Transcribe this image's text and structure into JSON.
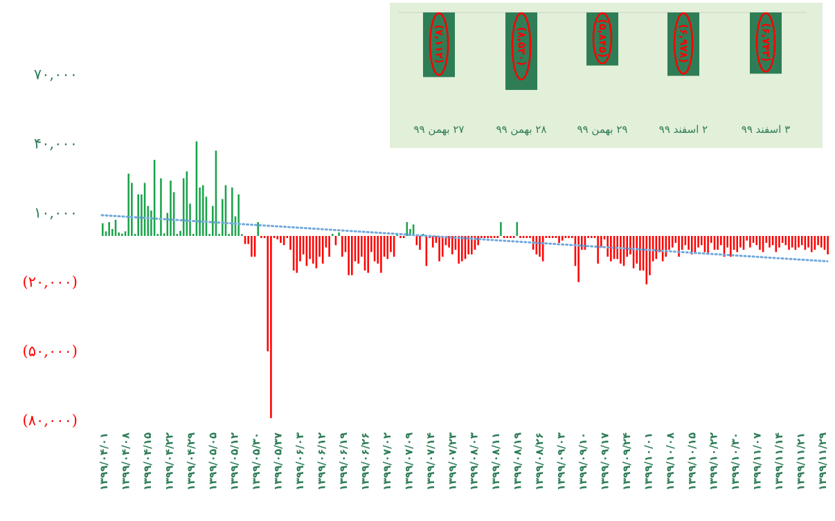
{
  "chart_data": [
    {
      "type": "bar",
      "title": "",
      "xlabel": "",
      "ylabel": "",
      "y_tick_labels": [
        "۷۰,۰۰۰",
        "۴۰,۰۰۰",
        "۱۰,۰۰۰",
        "(۲۰,۰۰۰)",
        "(۵۰,۰۰۰)",
        "(۸۰,۰۰۰)"
      ],
      "y_tick_values": [
        70000,
        40000,
        10000,
        -20000,
        -50000,
        -80000
      ],
      "ylim": [
        -80000,
        70000
      ],
      "x_tick_labels": [
        "۱۳۹۹/۰۴/۰۱",
        "۱۳۹۹/۰۴/۰۸",
        "۱۳۹۹/۰۴/۱۵",
        "۱۳۹۹/۰۴/۲۲",
        "۱۳۹۹/۰۴/۲۹",
        "۱۳۹۹/۰۵/۰۵",
        "۱۳۹۹/۰۵/۱۲",
        "۱۳۹۹/۰۵/۳۰",
        "۱۳۹۹/۰۵/۳۷",
        "۱۳۹۹/۰۶/۰۳",
        "۱۳۹۹/۰۶/۱۲",
        "۱۳۹۹/۰۶/۱۹",
        "۱۳۹۹/۰۶/۲۶",
        "۱۳۹۹/۰۷/۰۲",
        "۱۳۹۹/۰۷/۰۹",
        "۱۳۹۹/۰۷/۱۴",
        "۱۳۹۹/۰۷/۲۳",
        "۱۳۹۹/۰۸/۰۳",
        "۱۳۹۹/۰۸/۱۱",
        "۱۳۹۹/۰۸/۱۹",
        "۱۳۹۹/۰۸/۲۶",
        "۱۳۹۹/۰۹/۰۳",
        "۱۳۹۹/۰۹/۱۰",
        "۱۳۹۹/۰۹/۱۷",
        "۱۳۹۹/۰۹/۲۴",
        "۱۳۹۹/۱۰/۰۱",
        "۱۳۹۹/۱۰/۰۸",
        "۱۳۹۹/۱۰/۱۵",
        "۱۳۹۹/۱۰/۲۲",
        "۱۳۹۹/۱۰/۳۰",
        "۱۳۹۹/۱۱/۰۷",
        "۱۳۹۹/۱۱/۱۴",
        "۱۳۹۹/۱۱/۲۱",
        "۱۳۹۹/۱۱/۲۹"
      ],
      "trendline": {
        "style": "dotted",
        "color": "#6fa8dc",
        "start": 9000,
        "end": -11000
      },
      "colors": {
        "positive": "#1aa34a",
        "negative": "#ff0000",
        "ytick_positive": "#2e7d57",
        "ytick_negative": "#ff0000",
        "xtick": "#2e7d57"
      },
      "grid": false,
      "values": [
        5500,
        2000,
        6000,
        3000,
        7000,
        1500,
        1000,
        2000,
        27000,
        23000,
        900,
        18000,
        18000,
        23000,
        13000,
        11000,
        33000,
        900,
        25000,
        1100,
        10000,
        24000,
        19000,
        900,
        2200,
        25000,
        28000,
        14000,
        900,
        41000,
        21000,
        22000,
        17000,
        900,
        13000,
        37000,
        900,
        16000,
        22000,
        900,
        21000,
        8500,
        18000,
        800,
        -3500,
        -3500,
        -9000,
        -9000,
        6000,
        -900,
        -900,
        -50000,
        -79000,
        -900,
        -1500,
        -3000,
        -4000,
        -900,
        -6000,
        -15000,
        -16000,
        -11000,
        -8000,
        -13000,
        -10000,
        -12000,
        -14000,
        -9000,
        -12000,
        -5000,
        -9000,
        900,
        -4000,
        1500,
        -9000,
        -7000,
        -17000,
        -17000,
        -11000,
        -12000,
        -9000,
        -15000,
        -16000,
        -7000,
        -11000,
        -12000,
        -16000,
        -9000,
        -10000,
        -7000,
        -9000,
        900,
        -900,
        -900,
        6000,
        3000,
        5000,
        -4000,
        -6000,
        900,
        -13000,
        -900,
        -5000,
        -3000,
        -11000,
        -9000,
        -4000,
        -5000,
        -8000,
        -6000,
        -12000,
        -11000,
        -10000,
        -8000,
        -8000,
        -6000,
        -4000,
        -900,
        -900,
        -900,
        -900,
        -900,
        -900,
        6000,
        -900,
        -900,
        -900,
        -900,
        6000,
        -900,
        -900,
        -900,
        -900,
        -6000,
        -8000,
        -9000,
        -11000,
        -900,
        -900,
        -900,
        -900,
        -3000,
        -2000,
        -900,
        -900,
        -900,
        -13000,
        -20000,
        -6000,
        -6000,
        -900,
        -900,
        -900,
        -12000,
        -5000,
        -1500,
        -9000,
        -11000,
        -10000,
        -10000,
        -12000,
        -13000,
        -9000,
        -8000,
        -14000,
        -12000,
        -15000,
        -15000,
        -21000,
        -17000,
        -11000,
        -10000,
        -7000,
        -11000,
        -9000,
        -6000,
        -5000,
        -3000,
        -9000,
        -6000,
        -4000,
        -6000,
        -8000,
        -7000,
        -5000,
        -4000,
        -7000,
        -8000,
        -3000,
        -6000,
        -6000,
        -4000,
        -9000,
        -5000,
        -9000,
        -6000,
        -7000,
        -5000,
        -6000,
        -2000,
        -5000,
        -3000,
        -4000,
        -6000,
        -7000,
        -3000,
        -5000,
        -4000,
        -7000,
        -5000,
        -3000,
        -4000,
        -6000,
        -5000,
        -6000,
        -5000,
        -4000,
        -6000,
        -5000,
        -7000,
        -6000,
        -4000,
        -5000,
        -6000,
        -8000
      ]
    },
    {
      "type": "bar",
      "title": "",
      "categories": [
        "۳ اسفند ۹۹",
        "۲ اسفند ۹۹",
        "۲۹ بهمن ۹۹",
        "۲۸ بهمن ۹۹",
        "۲۷ بهمن ۹۹"
      ],
      "values": [
        -6743,
        -6978,
        -5845,
        -8530,
        -7112
      ],
      "data_labels": [
        "(۶,۷۴۳)",
        "(۶,۹۷۸)",
        "(۵,۸۴۵)",
        "(۸,۵۳۰)",
        "(۷,۱۱۲)"
      ],
      "ylim": [
        -8530,
        0
      ],
      "colors": {
        "background": "#e2efd9",
        "bar": "#2e7d57",
        "label_circle": "#ff0000",
        "category_text": "#2e7d57"
      }
    }
  ]
}
